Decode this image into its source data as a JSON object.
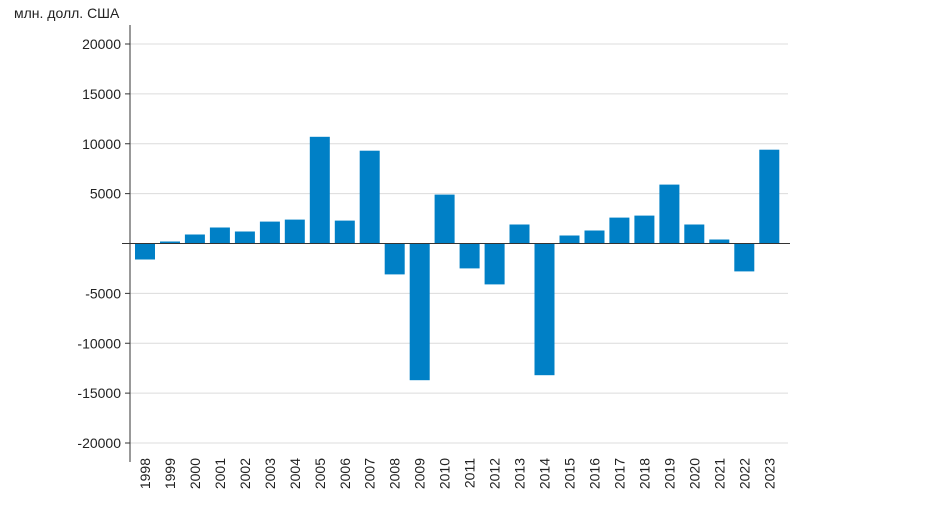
{
  "chart_data": {
    "type": "bar",
    "ylabel": "млн. долл. США",
    "categories": [
      "1998",
      "1999",
      "2000",
      "2001",
      "2002",
      "2003",
      "2004",
      "2005",
      "2006",
      "2007",
      "2008",
      "2009",
      "2010",
      "2011",
      "2012",
      "2013",
      "2014",
      "2015",
      "2016",
      "2017",
      "2018",
      "2019",
      "2020",
      "2021",
      "2022",
      "2023"
    ],
    "values": [
      -1600,
      200,
      900,
      1600,
      1200,
      2200,
      2400,
      10700,
      2300,
      9300,
      -3100,
      -13700,
      4900,
      -2500,
      -4100,
      1900,
      -13200,
      800,
      1300,
      2600,
      2800,
      5900,
      1900,
      400,
      -2800,
      9400
    ],
    "ylim": [
      -20000,
      20000
    ],
    "yticks": [
      -20000,
      -15000,
      -10000,
      -5000,
      5000,
      10000,
      15000,
      20000
    ],
    "grid": true,
    "bar_color": "#0080c6"
  }
}
